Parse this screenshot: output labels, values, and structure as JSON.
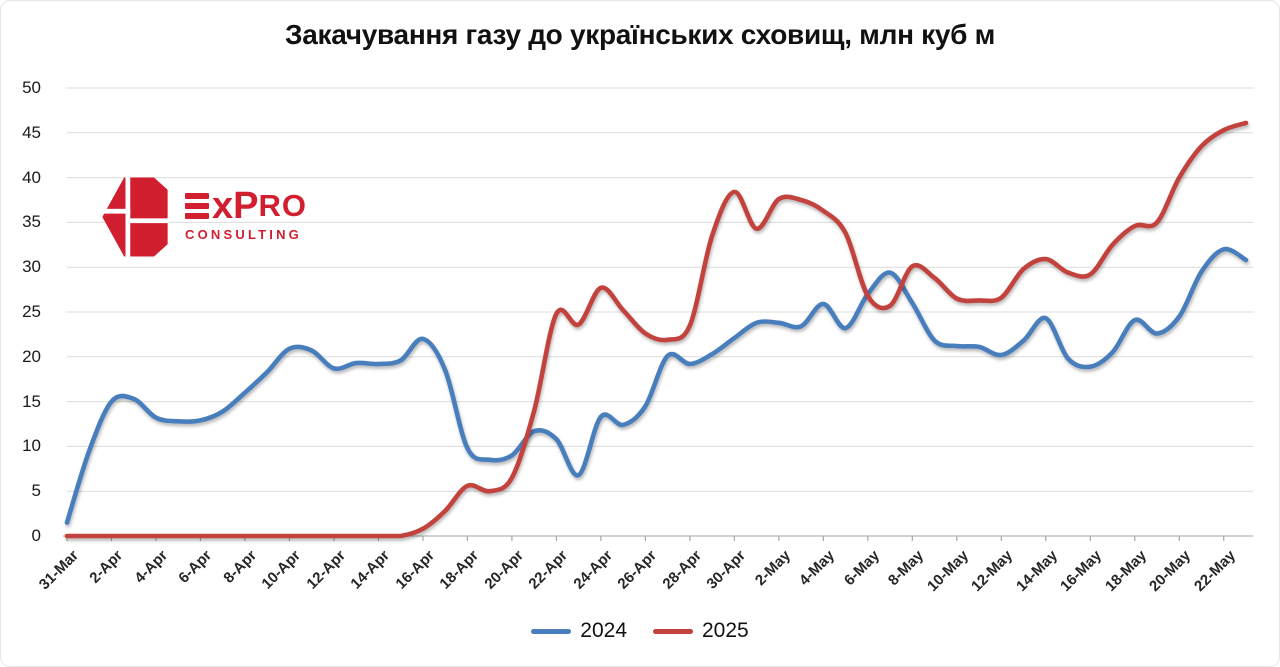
{
  "title": "Закачування газу до українських сховищ, млн куб м",
  "logo": {
    "brand_main": "xP",
    "brand_small": "RO",
    "consulting": "CONSULTING",
    "color": "#d11f2f"
  },
  "legend": [
    {
      "label": "2024",
      "color": "#4a7ebd"
    },
    {
      "label": "2025",
      "color": "#c2423d"
    }
  ],
  "colors": {
    "grid": "#dcdcdc",
    "axis": "#c2c2c2",
    "tick": "#a6a6a6"
  },
  "chart_data": {
    "type": "line",
    "title": "Закачування газу до українських сховищ, млн куб м",
    "xlabel": "",
    "ylabel": "",
    "ylim": [
      0,
      50
    ],
    "y_ticks": [
      0,
      5,
      10,
      15,
      20,
      25,
      30,
      35,
      40,
      45,
      50
    ],
    "grid": "horizontal",
    "smooth": true,
    "legend_position": "bottom",
    "x": [
      "31-Mar",
      "1-Apr",
      "2-Apr",
      "3-Apr",
      "4-Apr",
      "5-Apr",
      "6-Apr",
      "7-Apr",
      "8-Apr",
      "9-Apr",
      "10-Apr",
      "11-Apr",
      "12-Apr",
      "13-Apr",
      "14-Apr",
      "15-Apr",
      "16-Apr",
      "17-Apr",
      "18-Apr",
      "19-Apr",
      "20-Apr",
      "21-Apr",
      "22-Apr",
      "23-Apr",
      "24-Apr",
      "25-Apr",
      "26-Apr",
      "27-Apr",
      "28-Apr",
      "29-Apr",
      "30-Apr",
      "1-May",
      "2-May",
      "3-May",
      "4-May",
      "5-May",
      "6-May",
      "7-May",
      "8-May",
      "9-May",
      "10-May",
      "11-May",
      "12-May",
      "13-May",
      "14-May",
      "15-May",
      "16-May",
      "17-May",
      "18-May",
      "19-May",
      "20-May",
      "21-May",
      "22-May",
      "23-May"
    ],
    "x_tick_labels": [
      "31-Mar",
      "2-Apr",
      "4-Apr",
      "6-Apr",
      "8-Apr",
      "10-Apr",
      "12-Apr",
      "14-Apr",
      "16-Apr",
      "18-Apr",
      "20-Apr",
      "22-Apr",
      "24-Apr",
      "26-Apr",
      "28-Apr",
      "30-Apr",
      "2-May",
      "4-May",
      "6-May",
      "8-May",
      "10-May",
      "12-May",
      "14-May",
      "16-May",
      "18-May",
      "20-May",
      "22-May"
    ],
    "series": [
      {
        "name": "2024",
        "color": "#4a7ebd",
        "values": [
          1.5,
          9.5,
          15.0,
          15.3,
          13.2,
          12.8,
          12.9,
          13.9,
          16.0,
          18.3,
          20.9,
          20.7,
          18.7,
          19.3,
          19.2,
          19.6,
          22.0,
          18.5,
          9.8,
          8.5,
          9.0,
          11.7,
          10.8,
          6.8,
          13.3,
          12.4,
          14.5,
          20.1,
          19.2,
          20.3,
          22.1,
          23.8,
          23.8,
          23.4,
          25.9,
          23.2,
          27.0,
          29.4,
          26.0,
          21.8,
          21.2,
          21.1,
          20.2,
          21.8,
          24.3,
          19.8,
          18.9,
          20.5,
          24.1,
          22.6,
          24.5,
          29.5,
          32.0,
          30.8
        ]
      },
      {
        "name": "2025",
        "color": "#c2423d",
        "values": [
          0,
          0,
          0,
          0,
          0,
          0,
          0,
          0,
          0,
          0,
          0,
          0,
          0,
          0,
          0,
          0,
          0.8,
          2.8,
          5.6,
          5.0,
          6.5,
          14.0,
          24.8,
          23.6,
          27.7,
          25.2,
          22.6,
          21.9,
          23.5,
          33.5,
          38.4,
          34.3,
          37.6,
          37.5,
          36.3,
          33.8,
          26.8,
          25.7,
          30.1,
          28.8,
          26.5,
          26.3,
          26.6,
          29.8,
          30.9,
          29.4,
          29.2,
          32.5,
          34.6,
          35.0,
          40.0,
          43.5,
          45.3,
          46.1
        ]
      }
    ]
  }
}
